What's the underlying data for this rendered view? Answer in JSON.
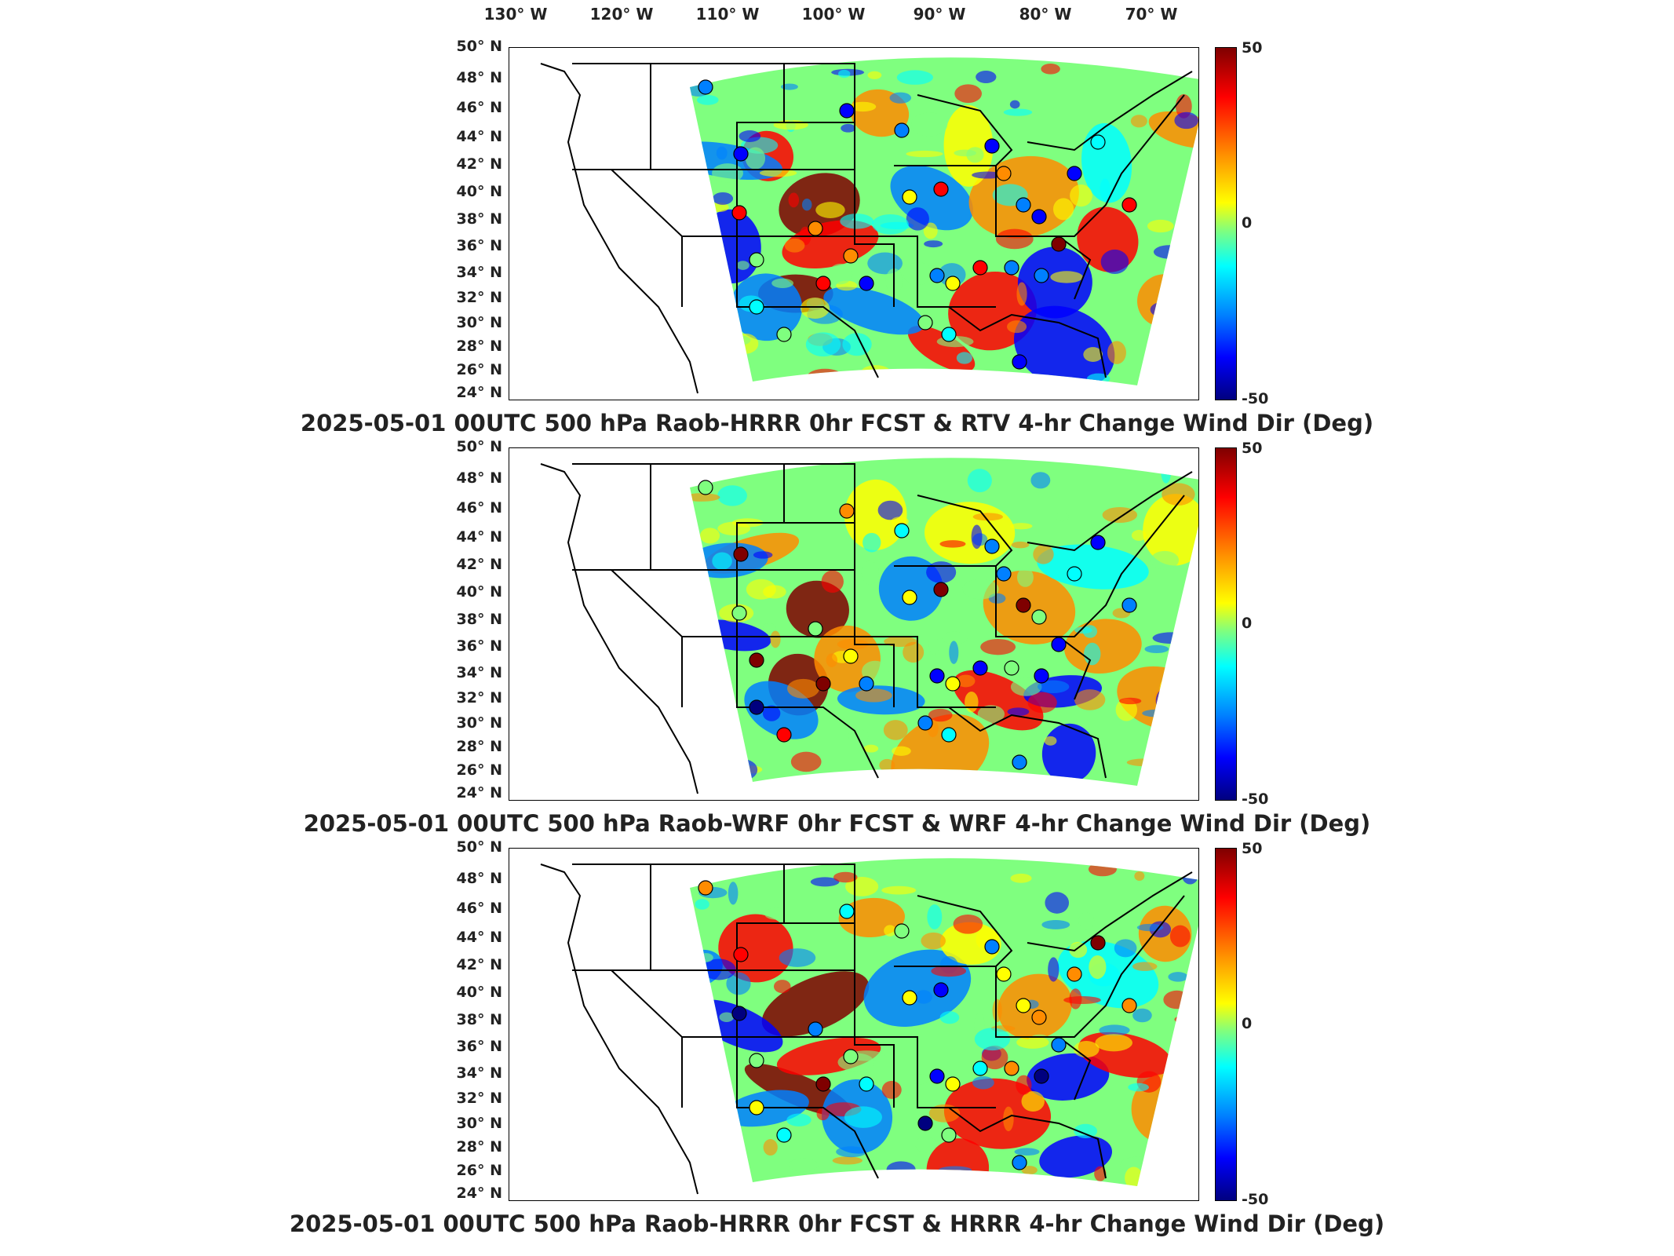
{
  "chart_data": [
    {
      "type": "heatmap",
      "title": "2025-05-01 00UTC 500 hPa Raob-HRRR 0hr FCST & RTV 4-hr Change Wind Dir (Deg)",
      "x_ticks": [
        "130° W",
        "120° W",
        "110° W",
        "100° W",
        "90° W",
        "80° W",
        "70° W"
      ],
      "y_ticks": [
        "50° N",
        "48° N",
        "46° N",
        "44° N",
        "42° N",
        "40° N",
        "38° N",
        "36° N",
        "34° N",
        "32° N",
        "30° N",
        "28° N",
        "26° N",
        "24° N"
      ],
      "colorbar": {
        "min": -50,
        "max": 50,
        "labels": [
          "50",
          "0",
          "-50"
        ],
        "colormap": "jet"
      },
      "grid": false
    },
    {
      "type": "heatmap",
      "title": "2025-05-01 00UTC 500 hPa Raob-WRF 0hr FCST & WRF 4-hr Change Wind Dir (Deg)",
      "x_ticks": [
        "130° W",
        "120° W",
        "110° W",
        "100° W",
        "90° W",
        "80° W",
        "70° W"
      ],
      "y_ticks": [
        "50° N",
        "48° N",
        "46° N",
        "44° N",
        "42° N",
        "40° N",
        "38° N",
        "36° N",
        "34° N",
        "32° N",
        "30° N",
        "28° N",
        "26° N",
        "24° N"
      ],
      "colorbar": {
        "min": -50,
        "max": 50,
        "labels": [
          "50",
          "0",
          "-50"
        ],
        "colormap": "jet"
      },
      "grid": false
    },
    {
      "type": "heatmap",
      "title": "2025-05-01 00UTC 500 hPa Raob-HRRR 0hr FCST & HRRR 4-hr Change Wind Dir (Deg)",
      "x_ticks": [
        "130° W",
        "120° W",
        "110° W",
        "100° W",
        "90° W",
        "80° W",
        "70° W"
      ],
      "y_ticks": [
        "50° N",
        "48° N",
        "46° N",
        "44° N",
        "42° N",
        "40° N",
        "38° N",
        "36° N",
        "34° N",
        "32° N",
        "30° N",
        "28° N",
        "26° N",
        "24° N"
      ],
      "colorbar": {
        "min": -50,
        "max": 50,
        "labels": [
          "50",
          "0",
          "-50"
        ],
        "colormap": "jet"
      },
      "grid": false
    }
  ],
  "colors": {
    "dark_red": "#7f0000",
    "red": "#ff0000",
    "orange": "#ff8c00",
    "yellow": "#ffff00",
    "green": "#7fff7f",
    "cyan": "#00ffff",
    "light_blue": "#0080ff",
    "blue": "#0000ff",
    "dark_blue": "#00007f"
  }
}
